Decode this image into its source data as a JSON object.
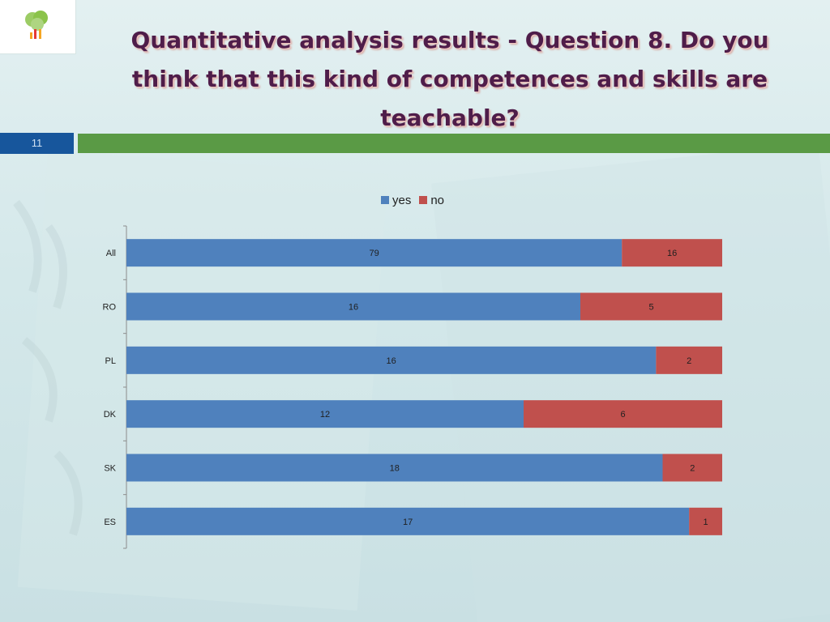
{
  "header": {
    "title": "Quantitative analysis results - Question 8. Do you think that this kind of competences and skills are teachable?",
    "slide_number": "11"
  },
  "logo": {
    "name": "tree-logo",
    "colors": [
      "#8bc34a",
      "#f5a623",
      "#e53935"
    ]
  },
  "colors": {
    "yes": "#4f81bd",
    "no": "#c0504d",
    "slide_bar_blue": "#17569c",
    "slide_bar_green": "#5a9a45"
  },
  "chart_data": {
    "type": "bar",
    "orientation": "horizontal",
    "stacking": "percent",
    "categories": [
      "All",
      "RO",
      "PL",
      "DK",
      "SK",
      "ES"
    ],
    "series": [
      {
        "name": "yes",
        "values": [
          79,
          16,
          16,
          12,
          18,
          17
        ]
      },
      {
        "name": "no",
        "values": [
          16,
          5,
          2,
          6,
          2,
          1
        ]
      }
    ],
    "legend": "top",
    "grid": false,
    "data_labels": true
  }
}
